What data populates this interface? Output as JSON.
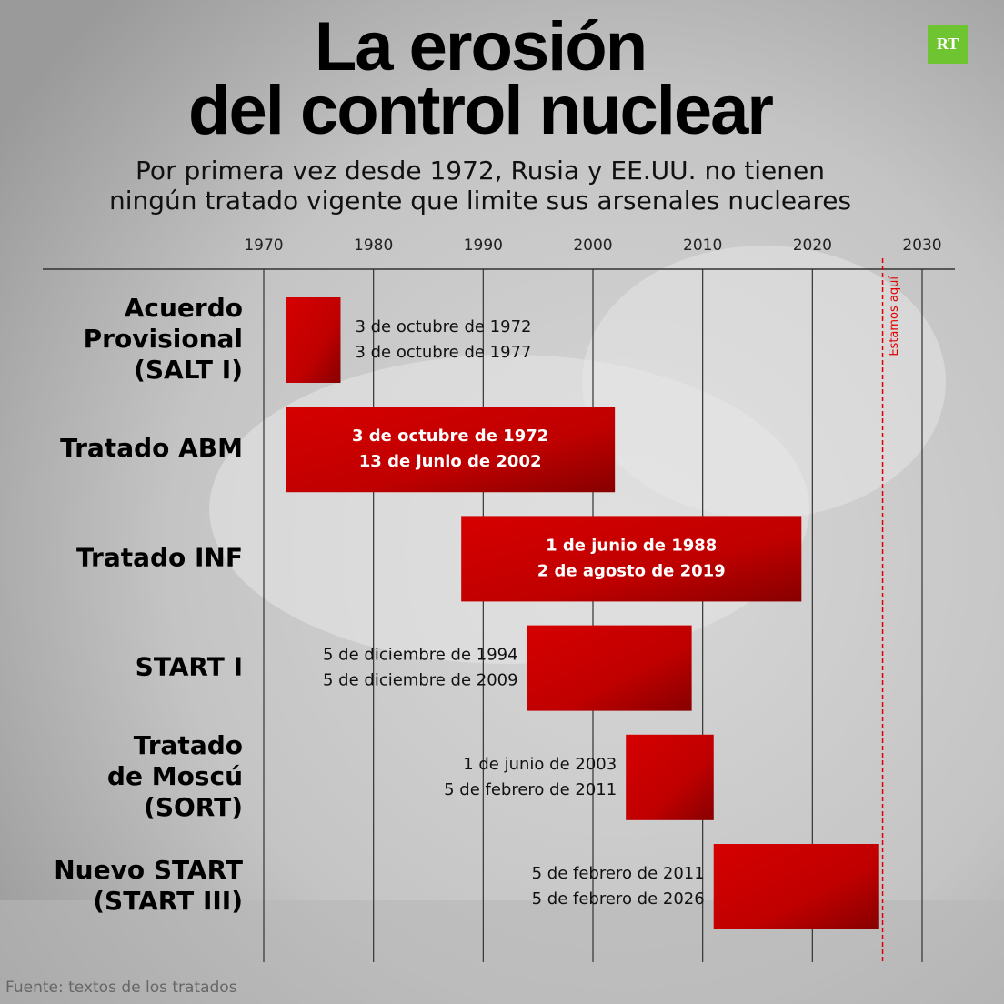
{
  "logo": "RT",
  "chart_data": {
    "type": "timeline",
    "title": [
      "La erosión",
      "del control nuclear"
    ],
    "subtitle": [
      "Por primera vez desde 1972, Rusia y EE.UU. no tienen",
      "ningún tratado vigente que limite sus arsenales nucleares"
    ],
    "source": "Fuente: textos de los tratados",
    "categories": [
      [
        "Acuerdo",
        "Provisional",
        "(SALT I)"
      ],
      [
        "Tratado ABM"
      ],
      [
        "Tratado INF"
      ],
      [
        "START I"
      ],
      [
        "Tratado",
        "de Moscú",
        "(SORT)"
      ],
      [
        "Nuevo START",
        "(START III)"
      ]
    ],
    "series": [
      {
        "color": "#e10000",
        "start": [
          1972,
          1972,
          1988,
          1994,
          2003,
          2011
        ],
        "end": [
          1977,
          2002,
          2019,
          2009,
          2011,
          2026
        ],
        "start_labels": [
          "3 de octubre de 1972",
          "3 de octubre de 1972",
          "1 de junio de 1988",
          "5 de diciembre de 1994",
          "1 de junio de 2003",
          "5 de febrero de 2011"
        ],
        "end_labels": [
          "3 de octubre de 1977",
          "13 de junio de 2002",
          "2 de agosto de 2019",
          "5 de diciembre de 2009",
          "5 de febrero de 2011",
          "5 de febrero de 2026"
        ],
        "label_position": [
          "right",
          "inside",
          "inside",
          "left",
          "left",
          "left"
        ]
      }
    ],
    "xlim": [
      1970,
      2030
    ],
    "xticks": [
      1970,
      1980,
      1990,
      2000,
      2010,
      2020,
      2030
    ],
    "grid": true,
    "marker": {
      "value": 2026.4,
      "label": "Estamos aquí",
      "color": "#e10000"
    }
  }
}
